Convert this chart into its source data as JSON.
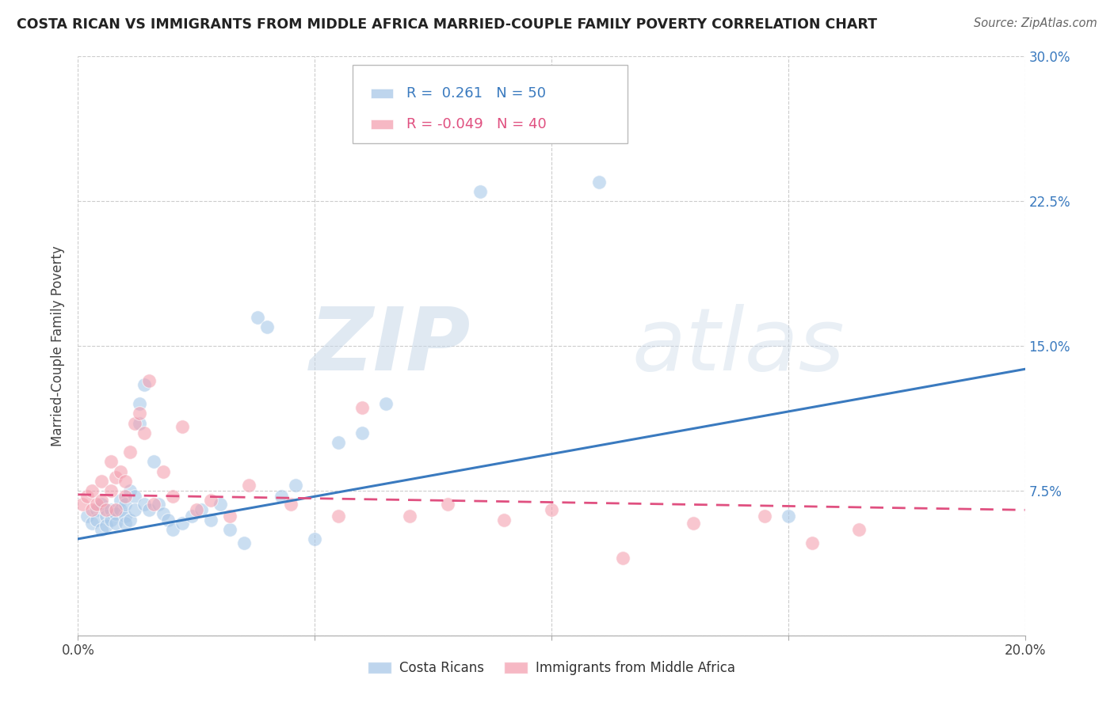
{
  "title": "COSTA RICAN VS IMMIGRANTS FROM MIDDLE AFRICA MARRIED-COUPLE FAMILY POVERTY CORRELATION CHART",
  "source": "Source: ZipAtlas.com",
  "ylabel": "Married-Couple Family Poverty",
  "xlim": [
    0.0,
    0.2
  ],
  "ylim": [
    0.0,
    0.3
  ],
  "xticks": [
    0.0,
    0.05,
    0.1,
    0.15,
    0.2
  ],
  "yticks": [
    0.0,
    0.075,
    0.15,
    0.225,
    0.3
  ],
  "ytick_labels_right": [
    "",
    "7.5%",
    "15.0%",
    "22.5%",
    "30.0%"
  ],
  "xtick_labels": [
    "0.0%",
    "",
    "",
    "",
    "20.0%"
  ],
  "blue_R": 0.261,
  "blue_N": 50,
  "pink_R": -0.049,
  "pink_N": 40,
  "blue_color": "#a8c8e8",
  "pink_color": "#f4a0b0",
  "blue_line_color": "#3a7abf",
  "pink_line_color": "#e05080",
  "watermark_zip": "ZIP",
  "watermark_atlas": "atlas",
  "legend_label_blue": "Costa Ricans",
  "legend_label_pink": "Immigrants from Middle Africa",
  "blue_scatter_x": [
    0.002,
    0.003,
    0.004,
    0.004,
    0.005,
    0.005,
    0.006,
    0.006,
    0.007,
    0.007,
    0.008,
    0.008,
    0.009,
    0.009,
    0.01,
    0.01,
    0.01,
    0.011,
    0.011,
    0.012,
    0.012,
    0.013,
    0.013,
    0.014,
    0.014,
    0.015,
    0.016,
    0.017,
    0.018,
    0.019,
    0.02,
    0.022,
    0.024,
    0.026,
    0.028,
    0.03,
    0.032,
    0.035,
    0.038,
    0.04,
    0.043,
    0.046,
    0.05,
    0.055,
    0.06,
    0.065,
    0.072,
    0.085,
    0.11,
    0.15
  ],
  "blue_scatter_y": [
    0.062,
    0.058,
    0.065,
    0.06,
    0.055,
    0.068,
    0.062,
    0.057,
    0.065,
    0.06,
    0.063,
    0.058,
    0.07,
    0.065,
    0.062,
    0.068,
    0.058,
    0.075,
    0.06,
    0.072,
    0.065,
    0.11,
    0.12,
    0.068,
    0.13,
    0.065,
    0.09,
    0.068,
    0.063,
    0.06,
    0.055,
    0.058,
    0.062,
    0.065,
    0.06,
    0.068,
    0.055,
    0.048,
    0.165,
    0.16,
    0.072,
    0.078,
    0.05,
    0.1,
    0.105,
    0.12,
    0.28,
    0.23,
    0.235,
    0.062
  ],
  "pink_scatter_x": [
    0.001,
    0.002,
    0.003,
    0.003,
    0.004,
    0.005,
    0.005,
    0.006,
    0.007,
    0.007,
    0.008,
    0.008,
    0.009,
    0.01,
    0.01,
    0.011,
    0.012,
    0.013,
    0.014,
    0.015,
    0.016,
    0.018,
    0.02,
    0.022,
    0.025,
    0.028,
    0.032,
    0.036,
    0.045,
    0.055,
    0.06,
    0.07,
    0.078,
    0.09,
    0.1,
    0.115,
    0.13,
    0.145,
    0.155,
    0.165
  ],
  "pink_scatter_y": [
    0.068,
    0.072,
    0.065,
    0.075,
    0.068,
    0.07,
    0.08,
    0.065,
    0.075,
    0.09,
    0.065,
    0.082,
    0.085,
    0.072,
    0.08,
    0.095,
    0.11,
    0.115,
    0.105,
    0.132,
    0.068,
    0.085,
    0.072,
    0.108,
    0.065,
    0.07,
    0.062,
    0.078,
    0.068,
    0.062,
    0.118,
    0.062,
    0.068,
    0.06,
    0.065,
    0.04,
    0.058,
    0.062,
    0.048,
    0.055
  ],
  "blue_trendline_x": [
    0.0,
    0.2
  ],
  "blue_trendline_y": [
    0.05,
    0.138
  ],
  "pink_trendline_x": [
    0.0,
    0.2
  ],
  "pink_trendline_y": [
    0.073,
    0.065
  ]
}
